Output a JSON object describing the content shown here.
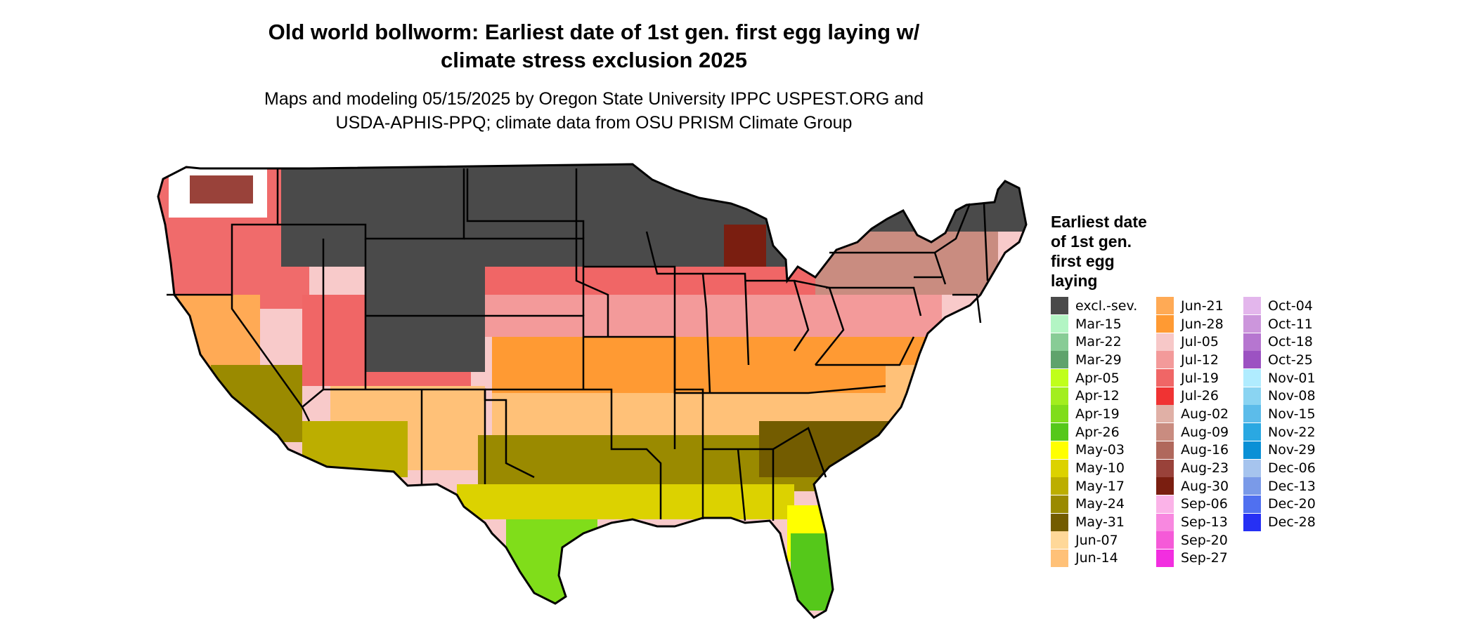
{
  "title_line1": "Old world bollworm: Earliest date of 1st gen. first egg laying w/",
  "title_line2": "climate stress exclusion 2025",
  "subtitle_line1": "Maps and modeling 05/15/2025 by Oregon State University IPPC USPEST.ORG and",
  "subtitle_line2": "USDA-APHIS-PPQ; climate data from OSU PRISM Climate Group",
  "legend": {
    "title_lines": [
      "Earliest date",
      "of 1st gen.",
      "first egg",
      "laying"
    ],
    "columns": [
      [
        {
          "label": "excl.-sev.",
          "color": "#4a4a4a"
        },
        {
          "label": "Mar-15",
          "color": "#b3f5c4"
        },
        {
          "label": "Mar-22",
          "color": "#88cc96"
        },
        {
          "label": "Mar-29",
          "color": "#5fa36c"
        },
        {
          "label": "Apr-05",
          "color": "#c0ff1a"
        },
        {
          "label": "Apr-12",
          "color": "#a2ee1e"
        },
        {
          "label": "Apr-19",
          "color": "#80dd1a"
        },
        {
          "label": "Apr-26",
          "color": "#55c81a"
        },
        {
          "label": "May-03",
          "color": "#ffff00"
        },
        {
          "label": "May-10",
          "color": "#dcd200"
        },
        {
          "label": "May-17",
          "color": "#bcae00"
        },
        {
          "label": "May-24",
          "color": "#9a8a00"
        },
        {
          "label": "May-31",
          "color": "#735c00"
        },
        {
          "label": "Jun-07",
          "color": "#ffd899"
        },
        {
          "label": "Jun-14",
          "color": "#ffc178"
        }
      ],
      [
        {
          "label": "Jun-21",
          "color": "#ffaa55"
        },
        {
          "label": "Jun-28",
          "color": "#ff9a33"
        },
        {
          "label": "Jul-05",
          "color": "#f7c8c8"
        },
        {
          "label": "Jul-12",
          "color": "#f39a9a"
        },
        {
          "label": "Jul-19",
          "color": "#f06666"
        },
        {
          "label": "Jul-26",
          "color": "#f03333"
        },
        {
          "label": "Aug-02",
          "color": "#e0b0a6"
        },
        {
          "label": "Aug-09",
          "color": "#c98c80"
        },
        {
          "label": "Aug-16",
          "color": "#b0685c"
        },
        {
          "label": "Aug-23",
          "color": "#99423a"
        },
        {
          "label": "Aug-30",
          "color": "#7a1e10"
        },
        {
          "label": "Sep-06",
          "color": "#fbb3e8"
        },
        {
          "label": "Sep-13",
          "color": "#f888e0"
        },
        {
          "label": "Sep-20",
          "color": "#f55ad8"
        },
        {
          "label": "Sep-27",
          "color": "#f22ee0"
        }
      ],
      [
        {
          "label": "Oct-04",
          "color": "#e3b6ec"
        },
        {
          "label": "Oct-11",
          "color": "#cc96dc"
        },
        {
          "label": "Oct-18",
          "color": "#b676d0"
        },
        {
          "label": "Oct-25",
          "color": "#9c52c2"
        },
        {
          "label": "Nov-01",
          "color": "#b0ecff"
        },
        {
          "label": "Nov-08",
          "color": "#8ad4f2"
        },
        {
          "label": "Nov-15",
          "color": "#5cbcea"
        },
        {
          "label": "Nov-22",
          "color": "#2aa8e2"
        },
        {
          "label": "Nov-29",
          "color": "#0a90d6"
        },
        {
          "label": "Dec-06",
          "color": "#a6c4ee"
        },
        {
          "label": "Dec-13",
          "color": "#7a9ae8"
        },
        {
          "label": "Dec-20",
          "color": "#5070f0"
        },
        {
          "label": "Dec-28",
          "color": "#2630f4"
        }
      ]
    ]
  },
  "map_colors": {
    "excluded": "#4a4a4a",
    "outline": "#000000",
    "background": "#ffffff"
  }
}
